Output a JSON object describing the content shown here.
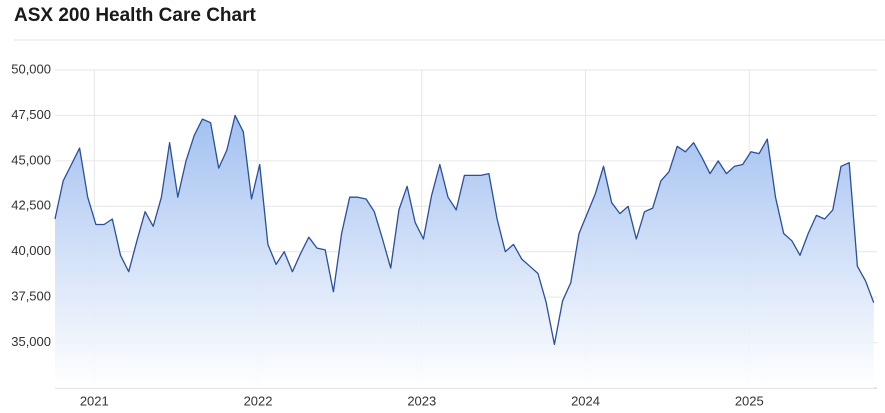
{
  "chart_data": {
    "type": "area",
    "title": "ASX 200 Health Care Chart",
    "x": [
      2020.76,
      2020.81,
      2020.86,
      2020.91,
      2020.96,
      2021.01,
      2021.06,
      2021.11,
      2021.16,
      2021.21,
      2021.26,
      2021.31,
      2021.36,
      2021.41,
      2021.46,
      2021.51,
      2021.56,
      2021.61,
      2021.66,
      2021.71,
      2021.76,
      2021.81,
      2021.86,
      2021.91,
      2021.96,
      2022.01,
      2022.06,
      2022.11,
      2022.16,
      2022.21,
      2022.26,
      2022.31,
      2022.36,
      2022.41,
      2022.46,
      2022.51,
      2022.56,
      2022.61,
      2022.66,
      2022.71,
      2022.76,
      2022.81,
      2022.86,
      2022.91,
      2022.96,
      2023.01,
      2023.06,
      2023.11,
      2023.16,
      2023.21,
      2023.26,
      2023.31,
      2023.36,
      2023.41,
      2023.46,
      2023.51,
      2023.56,
      2023.61,
      2023.66,
      2023.71,
      2023.76,
      2023.81,
      2023.86,
      2023.91,
      2023.96,
      2024.01,
      2024.06,
      2024.11,
      2024.16,
      2024.21,
      2024.26,
      2024.31,
      2024.36,
      2024.41,
      2024.46,
      2024.51,
      2024.56,
      2024.61,
      2024.66,
      2024.71,
      2024.76,
      2024.81,
      2024.86,
      2024.91,
      2024.96,
      2025.01,
      2025.06,
      2025.11,
      2025.16,
      2025.21,
      2025.26,
      2025.31,
      2025.36,
      2025.41,
      2025.46,
      2025.51,
      2025.56,
      2025.61,
      2025.66,
      2025.71,
      2025.76
    ],
    "values": [
      41800,
      43900,
      44800,
      45700,
      43000,
      41500,
      41500,
      41800,
      39800,
      38900,
      40600,
      42200,
      41400,
      43000,
      46000,
      43000,
      45000,
      46400,
      47300,
      47100,
      44600,
      45600,
      47500,
      46600,
      42900,
      44800,
      40400,
      39300,
      40000,
      38900,
      39900,
      40800,
      40200,
      40100,
      37800,
      41000,
      43000,
      43000,
      42900,
      42200,
      40700,
      39100,
      42300,
      43600,
      41600,
      40700,
      43100,
      44800,
      43000,
      42300,
      44200,
      44200,
      44200,
      44300,
      41800,
      40000,
      40400,
      39600,
      39200,
      38800,
      37200,
      34900,
      37300,
      38300,
      41000,
      42100,
      43200,
      44700,
      42700,
      42100,
      42500,
      40700,
      42200,
      42400,
      43900,
      44400,
      45800,
      45500,
      46000,
      45200,
      44300,
      45000,
      44300,
      44700,
      44800,
      45500,
      45400,
      46200,
      43000,
      41000,
      40600,
      39800,
      41000,
      42000,
      41800,
      42300,
      44700,
      44900,
      39200,
      38400,
      37200
    ],
    "color": "#2b4f9e",
    "xlim": [
      2020.76,
      2025.78
    ],
    "xticks": [
      2021,
      2022,
      2023,
      2024,
      2025
    ],
    "ylim": [
      32500,
      50000
    ],
    "yticks": [
      {
        "value": 35000,
        "label": "35,000"
      },
      {
        "value": 37500,
        "label": "37,500"
      },
      {
        "value": 40000,
        "label": "40,000"
      },
      {
        "value": 42500,
        "label": "42,500"
      },
      {
        "value": 45000,
        "label": "45,000"
      },
      {
        "value": 47500,
        "label": "47,500"
      },
      {
        "value": 50000,
        "label": "50,000"
      }
    ],
    "grid": true
  }
}
